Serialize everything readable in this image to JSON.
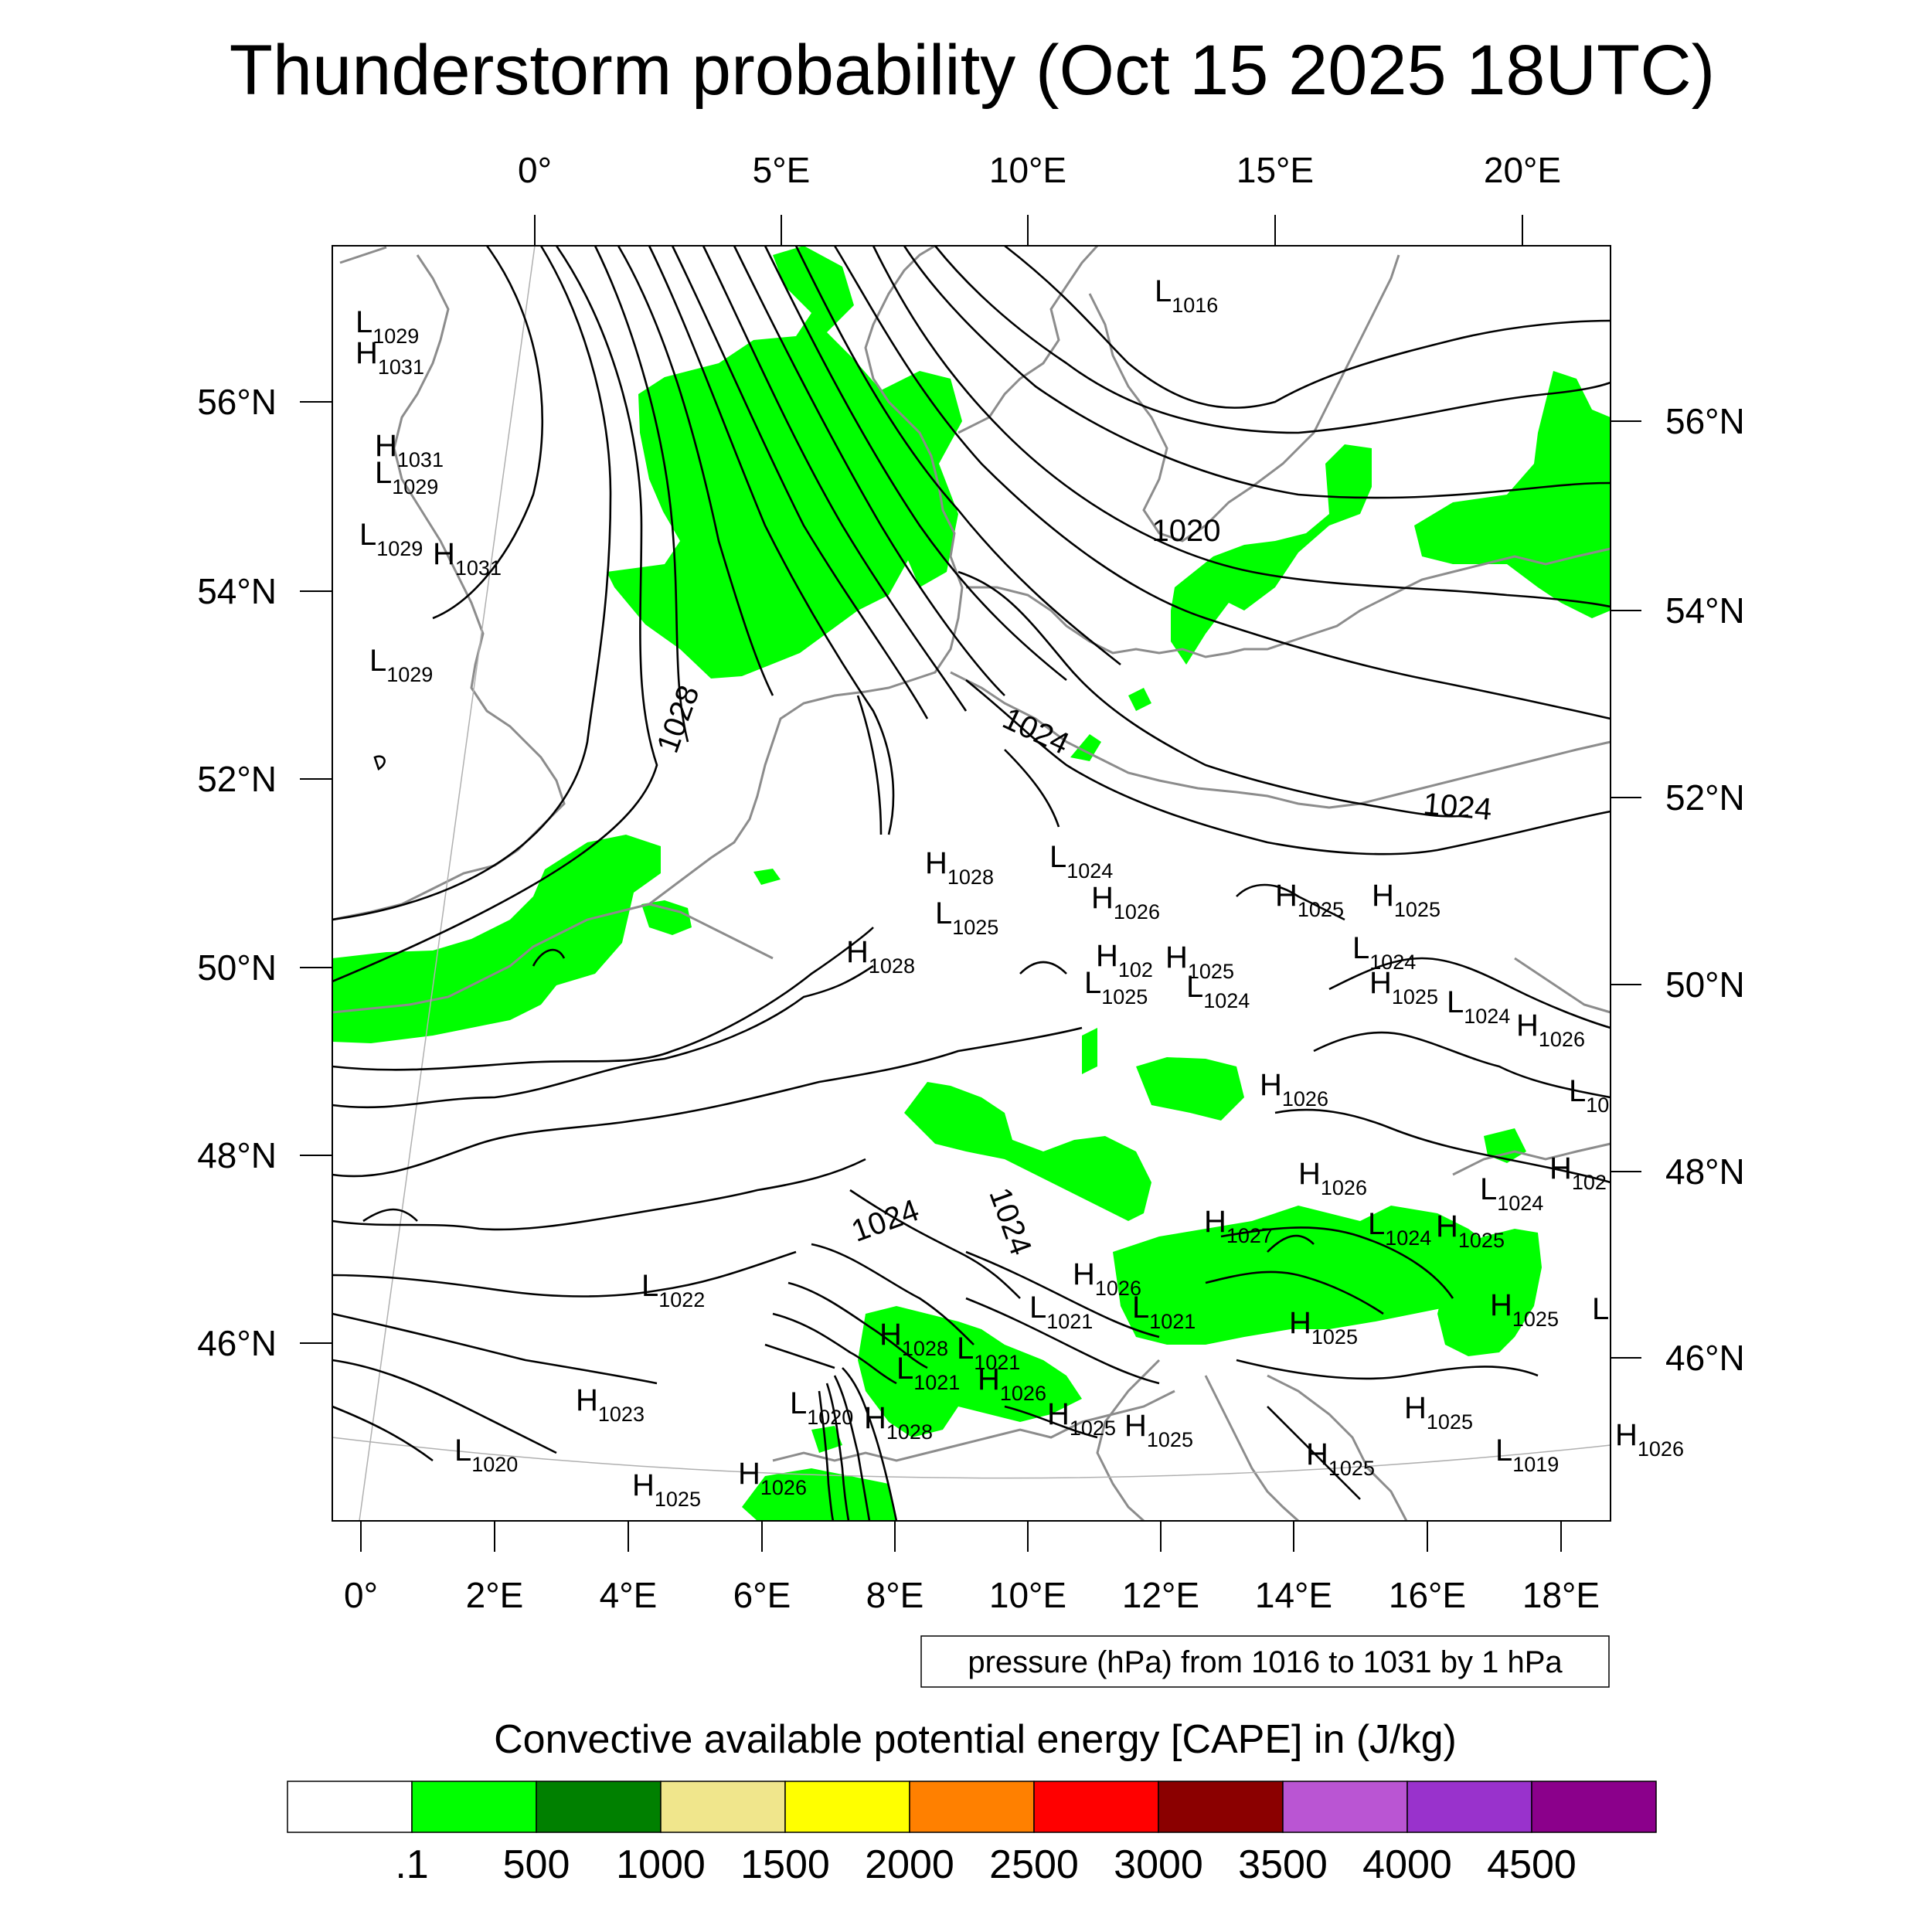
{
  "title": "Thunderstorm probability (Oct 15 2025 18UTC)",
  "axes": {
    "top_lon": [
      "0°",
      "5°E",
      "10°E",
      "15°E",
      "20°E"
    ],
    "bottom_lon": [
      "0°",
      "2°E",
      "4°E",
      "6°E",
      "8°E",
      "10°E",
      "12°E",
      "14°E",
      "16°E",
      "18°E"
    ],
    "left_lat": [
      "56°N",
      "54°N",
      "52°N",
      "50°N",
      "48°N",
      "46°N"
    ],
    "right_lat": [
      "56°N",
      "54°N",
      "52°N",
      "50°N",
      "48°N",
      "46°N"
    ]
  },
  "isobar_labels": [
    "1028",
    "1024",
    "1020",
    "1024",
    "1024",
    "1024"
  ],
  "pressure_centers": [
    {
      "t": "L",
      "v": "1016"
    },
    {
      "t": "L",
      "v": "1029"
    },
    {
      "t": "H",
      "v": "1031"
    },
    {
      "t": "H",
      "v": "1031"
    },
    {
      "t": "L",
      "v": "1029"
    },
    {
      "t": "L",
      "v": "1029"
    },
    {
      "t": "H",
      "v": "1031"
    },
    {
      "t": "L",
      "v": "1029"
    },
    {
      "t": "H",
      "v": "1028"
    },
    {
      "t": "L",
      "v": "1025"
    },
    {
      "t": "L",
      "v": "1024"
    },
    {
      "t": "H",
      "v": "1026"
    },
    {
      "t": "H",
      "v": "1028"
    },
    {
      "t": "H",
      "v": "102"
    },
    {
      "t": "L",
      "v": "1025"
    },
    {
      "t": "H",
      "v": "1025"
    },
    {
      "t": "L",
      "v": "1024"
    },
    {
      "t": "H",
      "v": "1025"
    },
    {
      "t": "H",
      "v": "1025"
    },
    {
      "t": "L",
      "v": "1024"
    },
    {
      "t": "H",
      "v": "1025"
    },
    {
      "t": "L",
      "v": "1024"
    },
    {
      "t": "H",
      "v": "1026"
    },
    {
      "t": "H",
      "v": "1026"
    },
    {
      "t": "L",
      "v": "10"
    },
    {
      "t": "H",
      "v": "1026"
    },
    {
      "t": "L",
      "v": "1024"
    },
    {
      "t": "H",
      "v": "102"
    },
    {
      "t": "H",
      "v": "1027"
    },
    {
      "t": "L",
      "v": "1024"
    },
    {
      "t": "H",
      "v": "1025"
    },
    {
      "t": "L",
      "v": "1022"
    },
    {
      "t": "H",
      "v": "1026"
    },
    {
      "t": "L",
      "v": "1021"
    },
    {
      "t": "L",
      "v": "1021"
    },
    {
      "t": "H",
      "v": "1025"
    },
    {
      "t": "H",
      "v": "1025"
    },
    {
      "t": "L",
      "v": ""
    },
    {
      "t": "H",
      "v": "1028"
    },
    {
      "t": "L",
      "v": "1021"
    },
    {
      "t": "L",
      "v": "1021"
    },
    {
      "t": "H",
      "v": "1026"
    },
    {
      "t": "H",
      "v": "1023"
    },
    {
      "t": "L",
      "v": "1020"
    },
    {
      "t": "H",
      "v": "1028"
    },
    {
      "t": "H",
      "v": "1025"
    },
    {
      "t": "H",
      "v": "1025"
    },
    {
      "t": "H",
      "v": "1025"
    },
    {
      "t": "L",
      "v": "1019"
    },
    {
      "t": "L",
      "v": "1020"
    },
    {
      "t": "H",
      "v": "1025"
    },
    {
      "t": "H",
      "v": "1026"
    },
    {
      "t": "H",
      "v": "1025"
    },
    {
      "t": "H",
      "v": "1026"
    }
  ],
  "info_box": "pressure (hPa) from 1016 to 1031 by 1 hPa",
  "colorbar": {
    "title": "Convective available potential energy [CAPE] in (J/kg)",
    "colors": [
      "#ffffff",
      "#00ff00",
      "#008000",
      "#f0e68c",
      "#ffff00",
      "#ff8000",
      "#ff0000",
      "#8b0000",
      "#ba55d3",
      "#9932cc",
      "#8b008b"
    ],
    "labels": [
      ".1",
      "500",
      "1000",
      "1500",
      "2000",
      "2500",
      "3000",
      "3500",
      "4000",
      "4500"
    ]
  },
  "style": {
    "cape_green": "#00ff00",
    "coast_gray": "#8c8c8c",
    "isobar_black": "#000000"
  }
}
